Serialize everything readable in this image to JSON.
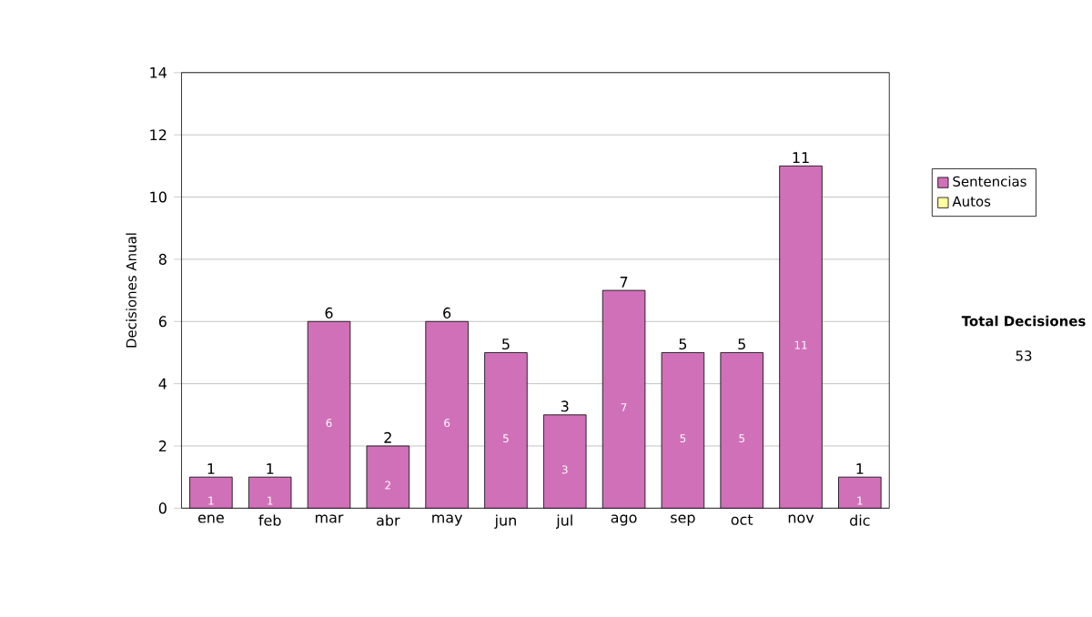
{
  "chart_data": {
    "type": "bar",
    "stacked": true,
    "ylabel": "Decisiones Anual",
    "categories": [
      "ene",
      "feb",
      "mar",
      "abr",
      "may",
      "jun",
      "jul",
      "ago",
      "sep",
      "oct",
      "nov",
      "dic"
    ],
    "series": [
      {
        "name": "Sentencias",
        "color": "#d070b8",
        "values": [
          1,
          1,
          6,
          2,
          6,
          5,
          3,
          7,
          5,
          5,
          11,
          1
        ]
      },
      {
        "name": "Autos",
        "color": "#ffffa0",
        "values": [
          null,
          null,
          null,
          null,
          null,
          null,
          null,
          null,
          null,
          null,
          null,
          null
        ]
      }
    ],
    "ylim": [
      0,
      14
    ],
    "yticks": [
      0,
      2,
      4,
      6,
      8,
      10,
      12,
      14
    ],
    "grid": "y",
    "legend": "right",
    "data_labels": true,
    "totals": [
      "1",
      "1",
      "6",
      "2",
      "6",
      "5",
      "3",
      "7",
      "5",
      "5",
      "11",
      "1"
    ],
    "annotations": [
      "Total Decisiones",
      "53"
    ]
  }
}
